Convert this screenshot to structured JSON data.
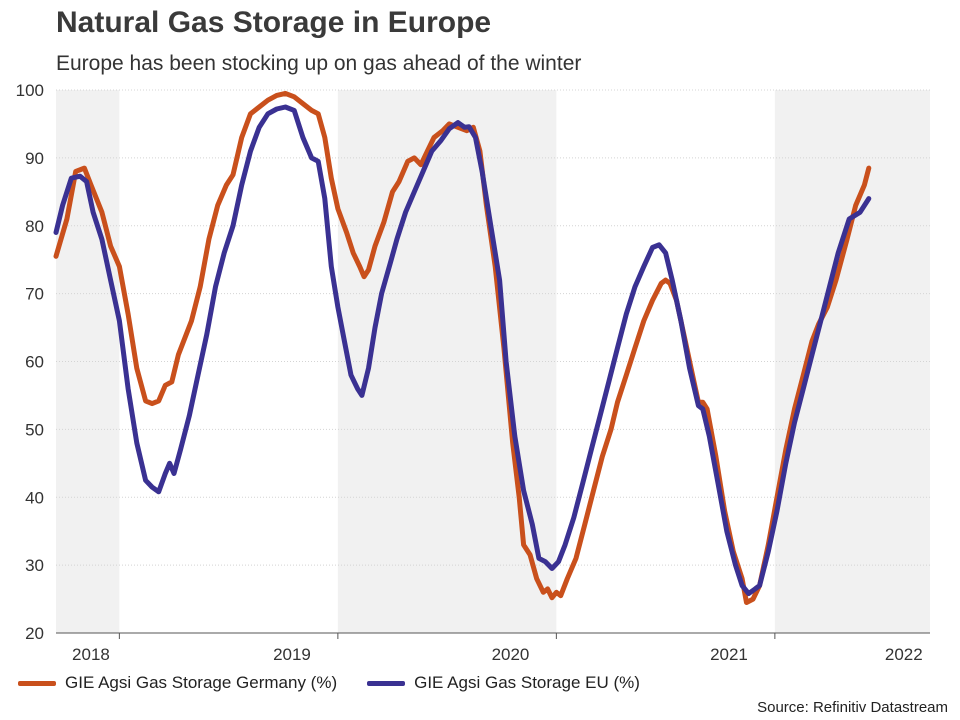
{
  "chart_data": {
    "type": "line",
    "title": "Natural Gas Storage in Europe",
    "subtitle": "Europe has been stocking up on gas ahead of the winter",
    "source": "Source: Refinitiv Datastream",
    "ylim": [
      20,
      100
    ],
    "y_ticks": [
      20,
      30,
      40,
      50,
      60,
      70,
      80,
      90,
      100
    ],
    "xlim": [
      2018.42,
      2022.42
    ],
    "year_labels": [
      "2018",
      "2019",
      "2020",
      "2021",
      "2022"
    ],
    "year_label_positions": [
      2018.58,
      2019.5,
      2020.5,
      2021.5,
      2022.3
    ],
    "year_boundaries": [
      2018.71,
      2019.71,
      2020.71,
      2021.71
    ],
    "shaded_ranges": [
      [
        2018.42,
        2018.71
      ],
      [
        2019.71,
        2020.71
      ],
      [
        2021.71,
        2022.42
      ]
    ],
    "series": [
      {
        "name": "GIE Agsi Gas Storage Germany (%)",
        "color": "#c9501c",
        "points": [
          [
            2018.42,
            75.5
          ],
          [
            2018.47,
            81
          ],
          [
            2018.51,
            88
          ],
          [
            2018.55,
            88.5
          ],
          [
            2018.58,
            86
          ],
          [
            2018.63,
            82
          ],
          [
            2018.67,
            77
          ],
          [
            2018.71,
            74
          ],
          [
            2018.75,
            67
          ],
          [
            2018.79,
            59
          ],
          [
            2018.83,
            54.2
          ],
          [
            2018.86,
            53.8
          ],
          [
            2018.89,
            54.2
          ],
          [
            2018.92,
            56.5
          ],
          [
            2018.95,
            57
          ],
          [
            2018.98,
            61
          ],
          [
            2019.04,
            66
          ],
          [
            2019.08,
            71
          ],
          [
            2019.12,
            78
          ],
          [
            2019.16,
            83
          ],
          [
            2019.2,
            86
          ],
          [
            2019.23,
            87.5
          ],
          [
            2019.27,
            93
          ],
          [
            2019.31,
            96.5
          ],
          [
            2019.35,
            97.5
          ],
          [
            2019.39,
            98.5
          ],
          [
            2019.43,
            99.2
          ],
          [
            2019.47,
            99.5
          ],
          [
            2019.51,
            99
          ],
          [
            2019.55,
            98
          ],
          [
            2019.59,
            97
          ],
          [
            2019.62,
            96.5
          ],
          [
            2019.65,
            93
          ],
          [
            2019.68,
            87
          ],
          [
            2019.71,
            82.5
          ],
          [
            2019.75,
            79
          ],
          [
            2019.78,
            76
          ],
          [
            2019.81,
            74
          ],
          [
            2019.83,
            72.5
          ],
          [
            2019.85,
            73.5
          ],
          [
            2019.88,
            77
          ],
          [
            2019.92,
            80.5
          ],
          [
            2019.96,
            85
          ],
          [
            2019.99,
            86.5
          ],
          [
            2020.03,
            89.5
          ],
          [
            2020.06,
            90
          ],
          [
            2020.09,
            89
          ],
          [
            2020.12,
            91
          ],
          [
            2020.15,
            93
          ],
          [
            2020.19,
            94
          ],
          [
            2020.22,
            95
          ],
          [
            2020.26,
            94.5
          ],
          [
            2020.3,
            94
          ],
          [
            2020.33,
            94.5
          ],
          [
            2020.36,
            91
          ],
          [
            2020.39,
            83
          ],
          [
            2020.43,
            74
          ],
          [
            2020.47,
            62
          ],
          [
            2020.51,
            48
          ],
          [
            2020.54,
            40
          ],
          [
            2020.56,
            33
          ],
          [
            2020.59,
            31.5
          ],
          [
            2020.62,
            28
          ],
          [
            2020.65,
            26
          ],
          [
            2020.67,
            26.5
          ],
          [
            2020.69,
            25.2
          ],
          [
            2020.71,
            26
          ],
          [
            2020.73,
            25.5
          ],
          [
            2020.76,
            28
          ],
          [
            2020.8,
            31
          ],
          [
            2020.84,
            36
          ],
          [
            2020.88,
            41
          ],
          [
            2020.92,
            46
          ],
          [
            2020.96,
            50
          ],
          [
            2020.99,
            54
          ],
          [
            2021.03,
            58
          ],
          [
            2021.07,
            62
          ],
          [
            2021.11,
            66
          ],
          [
            2021.15,
            69
          ],
          [
            2021.19,
            71.5
          ],
          [
            2021.21,
            72
          ],
          [
            2021.23,
            71.5
          ],
          [
            2021.26,
            69
          ],
          [
            2021.3,
            63
          ],
          [
            2021.34,
            57
          ],
          [
            2021.36,
            54
          ],
          [
            2021.38,
            54
          ],
          [
            2021.4,
            53
          ],
          [
            2021.44,
            46
          ],
          [
            2021.48,
            38
          ],
          [
            2021.52,
            32
          ],
          [
            2021.56,
            28
          ],
          [
            2021.58,
            24.5
          ],
          [
            2021.61,
            25
          ],
          [
            2021.64,
            27
          ],
          [
            2021.68,
            33
          ],
          [
            2021.72,
            40
          ],
          [
            2021.76,
            47
          ],
          [
            2021.8,
            53
          ],
          [
            2021.84,
            58
          ],
          [
            2021.88,
            63
          ],
          [
            2021.91,
            65.5
          ],
          [
            2021.95,
            68
          ],
          [
            2021.99,
            72
          ],
          [
            2022.04,
            78
          ],
          [
            2022.08,
            83
          ],
          [
            2022.12,
            86
          ],
          [
            2022.14,
            88.5
          ]
        ]
      },
      {
        "name": "GIE Agsi Gas Storage EU (%)",
        "color": "#3a3192",
        "points": [
          [
            2018.42,
            79
          ],
          [
            2018.45,
            83
          ],
          [
            2018.49,
            87
          ],
          [
            2018.53,
            87.3
          ],
          [
            2018.56,
            86.5
          ],
          [
            2018.59,
            82
          ],
          [
            2018.63,
            78
          ],
          [
            2018.67,
            72
          ],
          [
            2018.71,
            66
          ],
          [
            2018.75,
            56
          ],
          [
            2018.79,
            48
          ],
          [
            2018.83,
            42.5
          ],
          [
            2018.86,
            41.5
          ],
          [
            2018.89,
            40.8
          ],
          [
            2018.92,
            43.5
          ],
          [
            2018.94,
            45
          ],
          [
            2018.96,
            43.5
          ],
          [
            2018.99,
            47
          ],
          [
            2019.03,
            52
          ],
          [
            2019.07,
            58
          ],
          [
            2019.11,
            64
          ],
          [
            2019.15,
            71
          ],
          [
            2019.19,
            76
          ],
          [
            2019.23,
            80
          ],
          [
            2019.27,
            86
          ],
          [
            2019.31,
            91
          ],
          [
            2019.35,
            94.5
          ],
          [
            2019.39,
            96.5
          ],
          [
            2019.43,
            97.2
          ],
          [
            2019.47,
            97.5
          ],
          [
            2019.51,
            97
          ],
          [
            2019.55,
            93
          ],
          [
            2019.59,
            90
          ],
          [
            2019.62,
            89.5
          ],
          [
            2019.65,
            84
          ],
          [
            2019.68,
            74
          ],
          [
            2019.71,
            68
          ],
          [
            2019.74,
            63
          ],
          [
            2019.77,
            58
          ],
          [
            2019.8,
            56
          ],
          [
            2019.82,
            55
          ],
          [
            2019.85,
            59
          ],
          [
            2019.88,
            65
          ],
          [
            2019.91,
            70
          ],
          [
            2019.95,
            74.5
          ],
          [
            2019.98,
            78
          ],
          [
            2020.02,
            82
          ],
          [
            2020.06,
            85
          ],
          [
            2020.1,
            88
          ],
          [
            2020.14,
            91
          ],
          [
            2020.18,
            92.5
          ],
          [
            2020.22,
            94.3
          ],
          [
            2020.26,
            95.2
          ],
          [
            2020.29,
            94.5
          ],
          [
            2020.31,
            94.6
          ],
          [
            2020.34,
            93
          ],
          [
            2020.37,
            88
          ],
          [
            2020.41,
            80
          ],
          [
            2020.45,
            72
          ],
          [
            2020.48,
            60
          ],
          [
            2020.52,
            49
          ],
          [
            2020.56,
            41
          ],
          [
            2020.6,
            36
          ],
          [
            2020.63,
            31
          ],
          [
            2020.66,
            30.5
          ],
          [
            2020.69,
            29.5
          ],
          [
            2020.72,
            30.5
          ],
          [
            2020.75,
            33
          ],
          [
            2020.79,
            37
          ],
          [
            2020.83,
            42
          ],
          [
            2020.87,
            47
          ],
          [
            2020.91,
            52
          ],
          [
            2020.95,
            57
          ],
          [
            2020.99,
            62
          ],
          [
            2021.03,
            67
          ],
          [
            2021.07,
            71
          ],
          [
            2021.11,
            74
          ],
          [
            2021.15,
            76.8
          ],
          [
            2021.18,
            77.2
          ],
          [
            2021.21,
            76
          ],
          [
            2021.24,
            72
          ],
          [
            2021.28,
            66
          ],
          [
            2021.32,
            59
          ],
          [
            2021.36,
            53.5
          ],
          [
            2021.38,
            53
          ],
          [
            2021.41,
            49
          ],
          [
            2021.45,
            42
          ],
          [
            2021.49,
            35
          ],
          [
            2021.53,
            30
          ],
          [
            2021.56,
            27
          ],
          [
            2021.59,
            25.8
          ],
          [
            2021.62,
            26.5
          ],
          [
            2021.64,
            27
          ],
          [
            2021.68,
            32
          ],
          [
            2021.72,
            38
          ],
          [
            2021.76,
            45
          ],
          [
            2021.8,
            51
          ],
          [
            2021.84,
            56
          ],
          [
            2021.88,
            61
          ],
          [
            2021.92,
            66
          ],
          [
            2021.96,
            71
          ],
          [
            2022.0,
            76
          ],
          [
            2022.05,
            81
          ],
          [
            2022.1,
            82
          ],
          [
            2022.14,
            84
          ]
        ]
      }
    ]
  }
}
